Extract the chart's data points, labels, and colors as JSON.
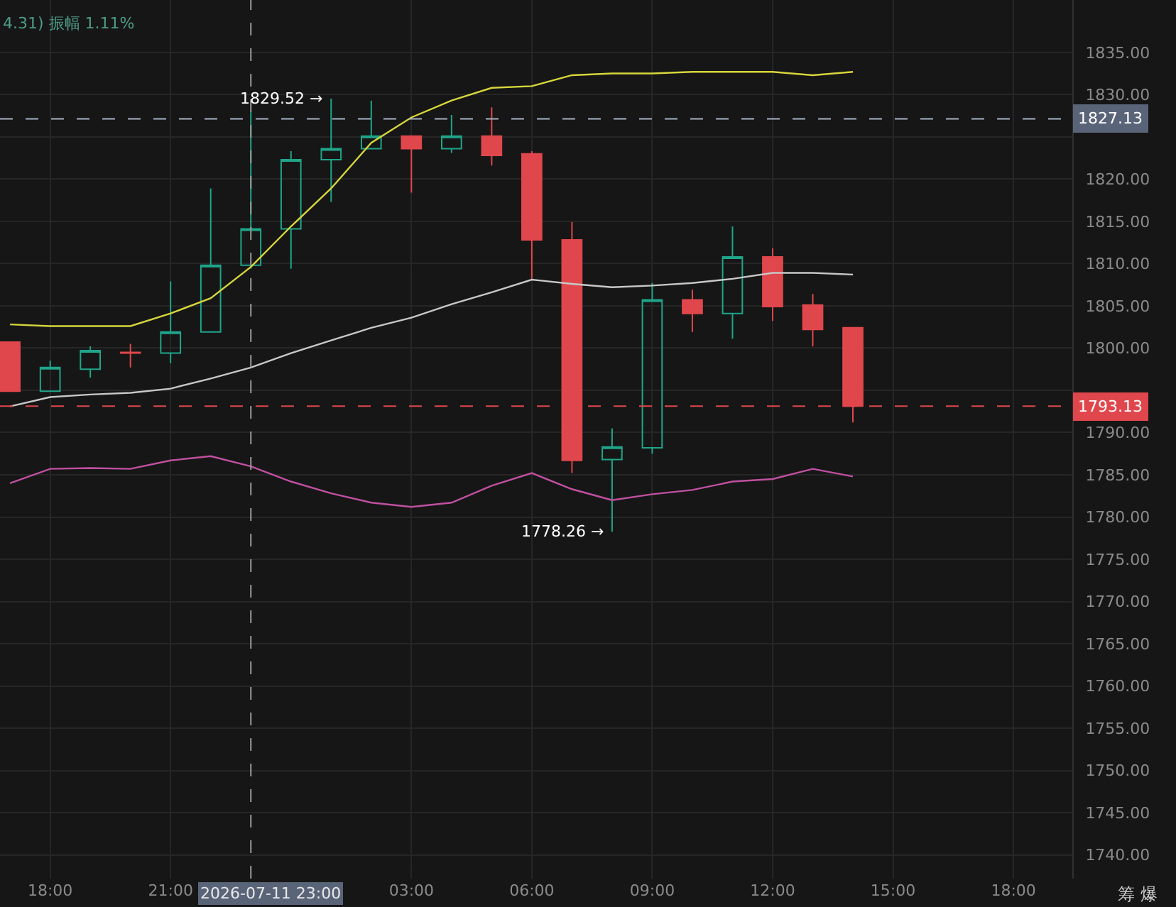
{
  "chart_data": {
    "type": "candlestick",
    "x": [
      "2026-07-11T17:00",
      "2026-07-11T18:00",
      "2026-07-11T19:00",
      "2026-07-11T20:00",
      "2026-07-11T21:00",
      "2026-07-11T22:00",
      "2026-07-11T23:00",
      "2026-07-12T00:00",
      "2026-07-12T01:00",
      "2026-07-12T02:00",
      "2026-07-12T03:00",
      "2026-07-12T04:00",
      "2026-07-12T05:00",
      "2026-07-12T06:00",
      "2026-07-12T07:00",
      "2026-07-12T08:00",
      "2026-07-12T09:00",
      "2026-07-12T10:00",
      "2026-07-12T11:00",
      "2026-07-12T12:00",
      "2026-07-12T13:00",
      "2026-07-12T14:00"
    ],
    "ohlc": [
      [
        1800.7,
        1800.7,
        1794.9,
        1794.9
      ],
      [
        1794.9,
        1798.5,
        1794.9,
        1797.7
      ],
      [
        1797.5,
        1800.2,
        1796.5,
        1799.7
      ],
      [
        1799.5,
        1800.5,
        1797.7,
        1799.4
      ],
      [
        1799.4,
        1807.9,
        1798.2,
        1801.9
      ],
      [
        1801.9,
        1818.9,
        1801.9,
        1809.8
      ],
      [
        1809.8,
        1828.0,
        1809.4,
        1814.1
      ],
      [
        1814.1,
        1823.3,
        1809.4,
        1822.3
      ],
      [
        1822.3,
        1829.52,
        1817.3,
        1823.6
      ],
      [
        1823.6,
        1829.3,
        1823.6,
        1825.1
      ],
      [
        1825.1,
        1825.1,
        1818.4,
        1823.6
      ],
      [
        1823.6,
        1827.6,
        1823.1,
        1825.1
      ],
      [
        1825.1,
        1828.5,
        1821.6,
        1822.8
      ],
      [
        1823.0,
        1823.3,
        1808.2,
        1812.8
      ],
      [
        1812.8,
        1814.9,
        1785.2,
        1786.7
      ],
      [
        1786.8,
        1790.5,
        1778.26,
        1788.3
      ],
      [
        1788.2,
        1807.7,
        1787.5,
        1805.7
      ],
      [
        1805.7,
        1806.9,
        1801.9,
        1804.1
      ],
      [
        1804.1,
        1814.4,
        1801.1,
        1810.8
      ],
      [
        1810.8,
        1811.8,
        1803.2,
        1804.9
      ],
      [
        1805.1,
        1806.4,
        1800.2,
        1802.2
      ],
      [
        1802.4,
        1802.4,
        1791.2,
        1793.13
      ]
    ],
    "colors": [
      "#e0474c",
      "#1fa58a",
      "#1fa58a",
      "#e0474c",
      "#1fa58a",
      "#1fa58a",
      "#1fa58a",
      "#1fa58a",
      "#1fa58a",
      "#1fa58a",
      "#e0474c",
      "#1fa58a",
      "#e0474c",
      "#e0474c",
      "#e0474c",
      "#1fa58a",
      "#1fa58a",
      "#e0474c",
      "#1fa58a",
      "#e0474c",
      "#e0474c",
      "#e0474c"
    ],
    "series": [
      {
        "type": "line",
        "color": "#d6d63c",
        "values": [
          1802.8,
          1802.6,
          1802.6,
          1802.6,
          1804.1,
          1805.9,
          1809.6,
          1814.4,
          1818.9,
          1824.3,
          1827.3,
          1829.3,
          1830.8,
          1831.0,
          1832.3,
          1832.5,
          1832.5,
          1832.7,
          1832.7,
          1832.7,
          1832.3,
          1832.7
        ]
      },
      {
        "type": "line",
        "color": "#c8c8c8",
        "values": [
          1793.1,
          1794.2,
          1794.5,
          1794.7,
          1795.2,
          1796.4,
          1797.7,
          1799.4,
          1800.9,
          1802.4,
          1803.6,
          1805.2,
          1806.6,
          1808.1,
          1807.6,
          1807.2,
          1807.4,
          1807.7,
          1808.2,
          1808.9,
          1808.9,
          1808.7
        ]
      },
      {
        "type": "line",
        "color": "#c050a0",
        "values": [
          1784.0,
          1785.7,
          1785.8,
          1785.7,
          1786.7,
          1787.2,
          1786.0,
          1784.2,
          1782.8,
          1781.7,
          1781.2,
          1781.7,
          1783.7,
          1785.2,
          1783.3,
          1782.0,
          1782.7,
          1783.2,
          1784.2,
          1784.5,
          1785.7,
          1784.8
        ]
      }
    ],
    "xlim": [
      "2026-07-11T16:45",
      "2026-07-12T19:28"
    ],
    "xticks": [
      {
        "value": "2026-07-11T18:00",
        "label": "18:00"
      },
      {
        "value": "2026-07-11T21:00",
        "label": "21:00"
      },
      {
        "value": "2026-07-12T03:00",
        "label": "03:00"
      },
      {
        "value": "2026-07-12T06:00",
        "label": "06:00"
      },
      {
        "value": "2026-07-12T09:00",
        "label": "09:00"
      },
      {
        "value": "2026-07-12T12:00",
        "label": "12:00"
      },
      {
        "value": "2026-07-12T15:00",
        "label": "15:00"
      },
      {
        "value": "2026-07-12T18:00",
        "label": "18:00"
      }
    ],
    "ylim": [
      1737.2,
      1841.2
    ],
    "yticks": [
      {
        "value": 1740,
        "label": "1740.00"
      },
      {
        "value": 1745,
        "label": "1745.00"
      },
      {
        "value": 1750,
        "label": "1750.00"
      },
      {
        "value": 1755,
        "label": "1755.00"
      },
      {
        "value": 1760,
        "label": "1760.00"
      },
      {
        "value": 1765,
        "label": "1765.00"
      },
      {
        "value": 1770,
        "label": "1770.00"
      },
      {
        "value": 1775,
        "label": "1775.00"
      },
      {
        "value": 1780,
        "label": "1780.00"
      },
      {
        "value": 1785,
        "label": "1785.00"
      },
      {
        "value": 1790,
        "label": "1790.00"
      },
      {
        "value": 1795,
        "label": null
      },
      {
        "value": 1800,
        "label": "1800.00"
      },
      {
        "value": 1805,
        "label": "1805.00"
      },
      {
        "value": 1810,
        "label": "1810.00"
      },
      {
        "value": 1815,
        "label": "1815.00"
      },
      {
        "value": 1820,
        "label": "1820.00"
      },
      {
        "value": 1825,
        "label": null
      },
      {
        "value": 1830,
        "label": "1830.00"
      },
      {
        "value": 1835,
        "label": "1835.00"
      }
    ],
    "ref_lines": [
      {
        "axis": "x",
        "value": "2026-07-11T23:00",
        "label": "2026-07-11 23:00",
        "color": "#9a9a9a",
        "line_style": "dashed"
      },
      {
        "axis": "y",
        "value": 1827.13,
        "label": "1827.13",
        "color": "#a8b4c4",
        "line_style": "dashed"
      },
      {
        "axis": "y",
        "value": 1793.13,
        "label": "1793.13",
        "color": "#e0474c",
        "line_style": "dashed"
      }
    ],
    "annotations": [
      "4.31) 振幅 1.11%",
      {
        "text": "1829.52 →",
        "x": "2026-07-12T01:00",
        "y": 1829.52
      },
      {
        "text": "1778.26 →",
        "x": "2026-07-12T08:00",
        "y": 1778.26
      },
      "筹 爆"
    ],
    "grid": true
  }
}
